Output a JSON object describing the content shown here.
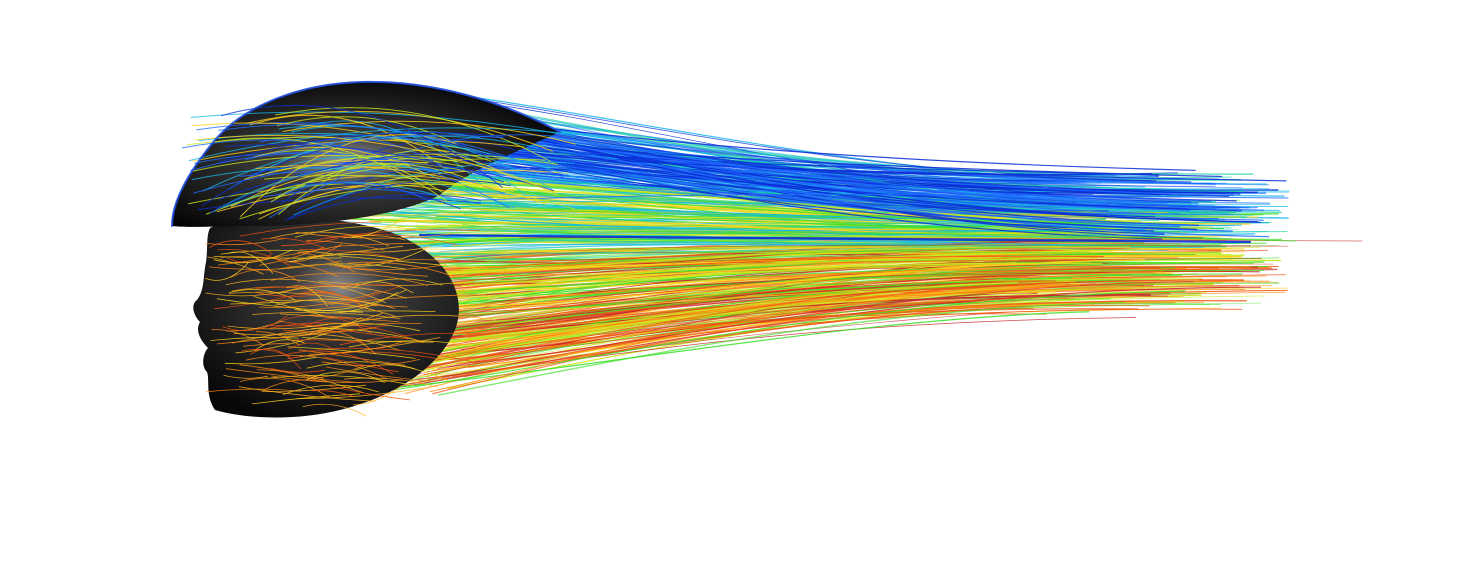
{
  "figure": {
    "subject": "cfd-streamlines-over-head-with-aero-helmet",
    "background_color": "#ffffff",
    "surface_color": "#0d0d0d",
    "surface_highlight": "#6b6b6b",
    "streamline_palette": [
      "#0a2fd6",
      "#1f6bff",
      "#18b6e8",
      "#1fd2a0",
      "#3ee02a",
      "#c8e81e",
      "#ffd21a",
      "#ff8a14",
      "#f05010",
      "#c62a2a"
    ]
  }
}
